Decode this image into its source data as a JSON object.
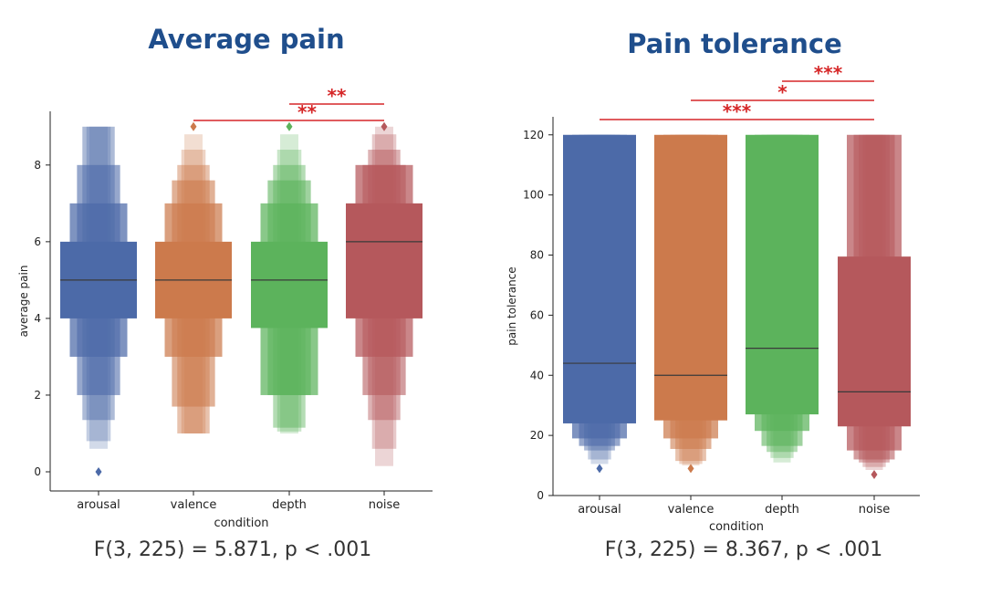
{
  "chart_data": [
    {
      "type": "boxen",
      "title": "Average pain",
      "xlabel": "condition",
      "ylabel": "average pain",
      "categories": [
        "arousal",
        "valence",
        "depth",
        "noise"
      ],
      "colors": [
        "#4c6aa8",
        "#cc7a4c",
        "#5cb35c",
        "#b5585c"
      ],
      "ylim": [
        -0.5,
        9.4
      ],
      "yticks": [
        0,
        2,
        4,
        6,
        8
      ],
      "medians": [
        5,
        5,
        5,
        6
      ],
      "letter_values": [
        [
          [
            4,
            6
          ],
          [
            3,
            7
          ],
          [
            2,
            8
          ],
          [
            1.35,
            9
          ],
          [
            0.8,
            9
          ],
          [
            0.6,
            9
          ]
        ],
        [
          [
            4,
            6
          ],
          [
            3,
            7
          ],
          [
            1.7,
            7.6
          ],
          [
            1,
            8
          ],
          [
            1,
            8.4
          ],
          [
            1,
            8.8
          ]
        ],
        [
          [
            3.75,
            6
          ],
          [
            2,
            7
          ],
          [
            2,
            7.6
          ],
          [
            1.15,
            8
          ],
          [
            1.05,
            8.4
          ],
          [
            1,
            8.8
          ]
        ],
        [
          [
            4,
            7
          ],
          [
            3,
            8
          ],
          [
            2,
            8
          ],
          [
            1.35,
            8.4
          ],
          [
            0.6,
            8.8
          ],
          [
            0.15,
            9
          ]
        ]
      ],
      "outliers": [
        [
          0
        ],
        [
          9
        ],
        [
          9
        ],
        [
          9
        ]
      ],
      "significance": [
        {
          "from": "valence",
          "to": "noise",
          "stars": "**"
        },
        {
          "from": "depth",
          "to": "noise",
          "stars": "**"
        }
      ],
      "stats": "F(3, 225) = 5.871, p < .001"
    },
    {
      "type": "boxen",
      "title": "Pain tolerance",
      "xlabel": "condition",
      "ylabel": "pain tolerance",
      "categories": [
        "arousal",
        "valence",
        "depth",
        "noise"
      ],
      "colors": [
        "#4c6aa8",
        "#cc7a4c",
        "#5cb35c",
        "#b5585c"
      ],
      "ylim": [
        0,
        126
      ],
      "yticks": [
        0,
        20,
        40,
        60,
        80,
        100,
        120
      ],
      "medians": [
        44,
        40,
        49,
        34.5
      ],
      "letter_values": [
        [
          [
            24,
            120
          ],
          [
            19,
            120
          ],
          [
            16.5,
            120
          ],
          [
            15,
            120
          ],
          [
            12,
            120
          ],
          [
            10.5,
            120
          ]
        ],
        [
          [
            25,
            120
          ],
          [
            19,
            120
          ],
          [
            15.5,
            120
          ],
          [
            11.5,
            120
          ],
          [
            10.5,
            120
          ],
          [
            10,
            120
          ]
        ],
        [
          [
            27,
            120
          ],
          [
            21.5,
            120
          ],
          [
            16.5,
            120
          ],
          [
            14.5,
            120
          ],
          [
            12.5,
            120
          ],
          [
            11,
            120
          ]
        ],
        [
          [
            23,
            79.5
          ],
          [
            15,
            120
          ],
          [
            12,
            120
          ],
          [
            11,
            120
          ],
          [
            9.5,
            120
          ],
          [
            8.5,
            120
          ]
        ]
      ],
      "outliers": [
        [
          9
        ],
        [
          9
        ],
        [],
        [
          7
        ]
      ],
      "significance": [
        {
          "from": "arousal",
          "to": "noise",
          "stars": "***"
        },
        {
          "from": "valence",
          "to": "noise",
          "stars": "*"
        },
        {
          "from": "depth",
          "to": "noise",
          "stars": "***"
        }
      ],
      "stats": "F(3, 225) = 8.367, p < .001"
    }
  ]
}
